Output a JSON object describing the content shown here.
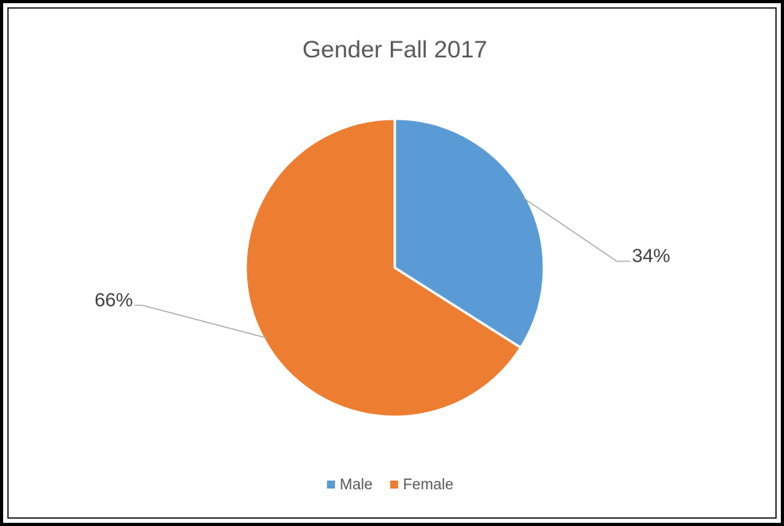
{
  "chart_data": {
    "type": "pie",
    "title": "Gender Fall 2017",
    "categories": [
      "Male",
      "Female"
    ],
    "values": [
      34,
      66
    ],
    "value_labels": [
      "34%",
      "66%"
    ],
    "colors": [
      "#5b9bd5",
      "#ed7d31"
    ],
    "legend": "bottom"
  }
}
